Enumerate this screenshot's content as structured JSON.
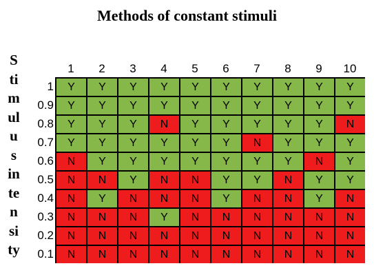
{
  "title": "Methods of constant stimuli",
  "axis_label_fragments": [
    "S",
    "ti",
    "m",
    "ul",
    "u",
    "s",
    "in",
    "te",
    "n",
    "si",
    "ty"
  ],
  "columns": [
    "1",
    "2",
    "3",
    "4",
    "5",
    "6",
    "7",
    "8",
    "9",
    "10"
  ],
  "rows": [
    {
      "label": "1",
      "cells": [
        "Y",
        "Y",
        "Y",
        "Y",
        "Y",
        "Y",
        "Y",
        "Y",
        "Y",
        "Y"
      ]
    },
    {
      "label": "0.9",
      "cells": [
        "Y",
        "Y",
        "Y",
        "Y",
        "Y",
        "Y",
        "Y",
        "Y",
        "Y",
        "Y"
      ]
    },
    {
      "label": "0.8",
      "cells": [
        "Y",
        "Y",
        "Y",
        "N",
        "Y",
        "Y",
        "Y",
        "Y",
        "Y",
        "N"
      ]
    },
    {
      "label": "0.7",
      "cells": [
        "Y",
        "Y",
        "Y",
        "Y",
        "Y",
        "Y",
        "N",
        "Y",
        "Y",
        "Y"
      ]
    },
    {
      "label": "0.6",
      "cells": [
        "N",
        "Y",
        "Y",
        "Y",
        "Y",
        "Y",
        "Y",
        "Y",
        "N",
        "Y"
      ]
    },
    {
      "label": "0.5",
      "cells": [
        "N",
        "N",
        "Y",
        "N",
        "N",
        "Y",
        "Y",
        "N",
        "Y",
        "Y"
      ]
    },
    {
      "label": "0.4",
      "cells": [
        "N",
        "Y",
        "N",
        "N",
        "N",
        "Y",
        "N",
        "N",
        "Y",
        "N"
      ]
    },
    {
      "label": "0.3",
      "cells": [
        "N",
        "N",
        "N",
        "Y",
        "N",
        "N",
        "N",
        "N",
        "N",
        "N"
      ]
    },
    {
      "label": "0.2",
      "cells": [
        "N",
        "N",
        "N",
        "N",
        "N",
        "N",
        "N",
        "N",
        "N",
        "N"
      ]
    },
    {
      "label": "0.1",
      "cells": [
        "N",
        "N",
        "N",
        "N",
        "N",
        "N",
        "N",
        "N",
        "N",
        "N"
      ]
    }
  ],
  "colors": {
    "Y": "#86b749",
    "N": "#ee1c1c",
    "border": "#000000"
  }
}
